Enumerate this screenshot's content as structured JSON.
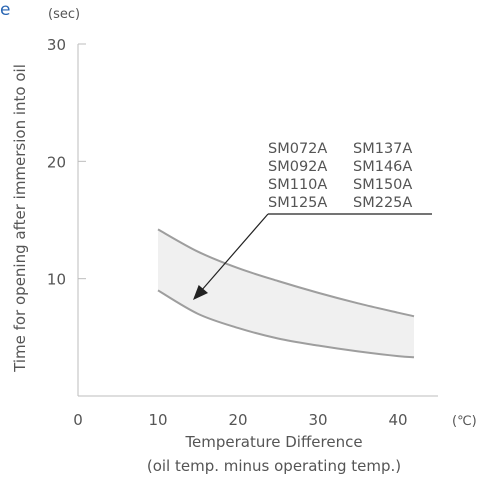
{
  "chart_data": {
    "type": "area",
    "corner_label": "e",
    "y_unit": "(sec)",
    "x_unit": "(℃)",
    "ylabel": "Time for opening after immersion into oil",
    "xlabel": "Temperature Difference",
    "xlabel_sub": "(oil temp. minus operating temp.)",
    "xlim": [
      0,
      45
    ],
    "ylim": [
      0,
      30
    ],
    "x_ticks": [
      "0",
      "10",
      "20",
      "30",
      "40"
    ],
    "y_ticks": [
      "10",
      "20",
      "30"
    ],
    "grid": false,
    "band": {
      "upper": {
        "x": [
          10,
          15,
          20,
          25,
          30,
          35,
          40,
          42
        ],
        "y": [
          14.2,
          12.3,
          10.9,
          9.8,
          8.8,
          7.9,
          7.1,
          6.8
        ]
      },
      "lower": {
        "x": [
          10,
          15,
          20,
          25,
          30,
          35,
          40,
          42
        ],
        "y": [
          9.0,
          7.0,
          5.8,
          4.9,
          4.3,
          3.8,
          3.4,
          3.3
        ]
      }
    },
    "models": [
      "SM072A",
      "SM137A",
      "SM092A",
      "SM146A",
      "SM110A",
      "SM150A",
      "SM125A",
      "SM225A"
    ]
  }
}
